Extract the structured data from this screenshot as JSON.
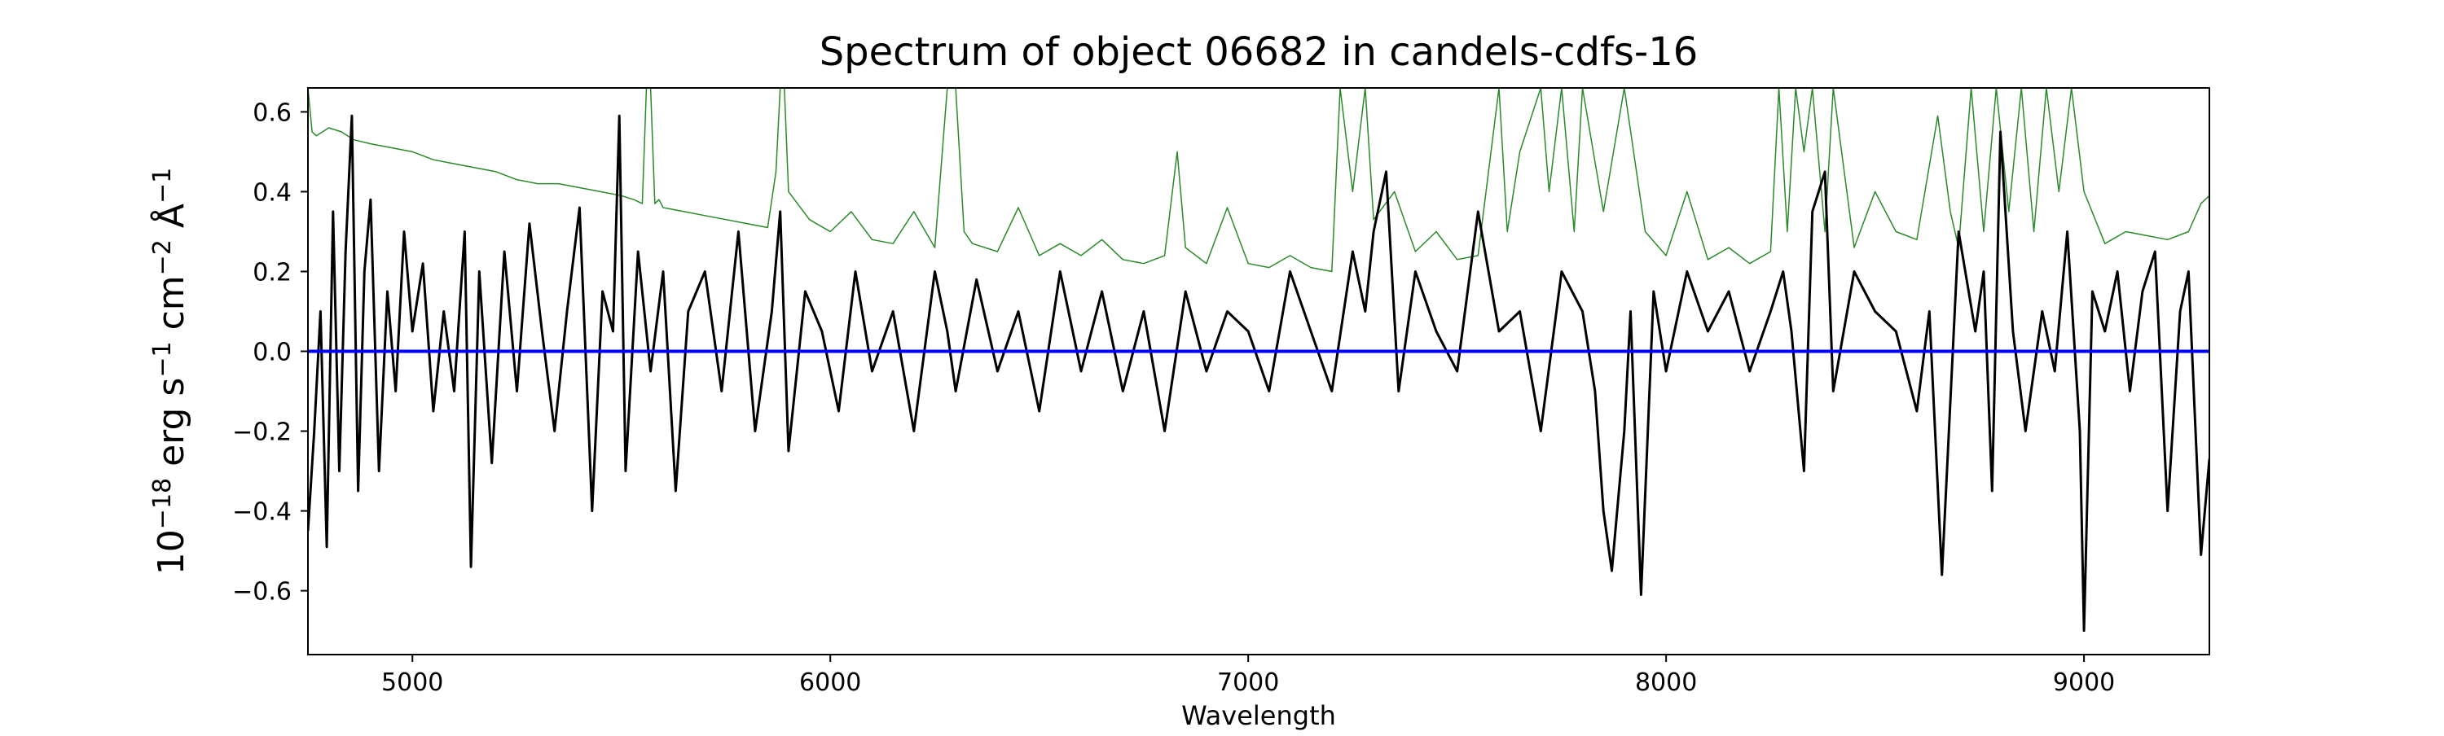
{
  "chart_data": {
    "type": "line",
    "title": "Spectrum of object 06682 in candels-cdfs-16",
    "xlabel": "Wavelength",
    "ylabel": {
      "prefix": "10",
      "prefix_exp": "−18",
      "unit_a": " erg s",
      "unit_a_exp": "−1",
      "unit_b": " cm",
      "unit_b_exp": "−2",
      "unit_c": " Å",
      "unit_c_exp": "−1"
    },
    "xlim": [
      4750,
      9300
    ],
    "ylim": [
      -0.76,
      0.66
    ],
    "xticks": [
      5000,
      6000,
      7000,
      8000,
      9000
    ],
    "xtick_labels": [
      "5000",
      "6000",
      "7000",
      "8000",
      "9000"
    ],
    "yticks": [
      -0.6,
      -0.4,
      -0.2,
      0.0,
      0.2,
      0.4,
      0.6
    ],
    "ytick_labels": [
      "−0.6",
      "−0.4",
      "−0.2",
      "0.0",
      "0.2",
      "0.4",
      "0.6"
    ],
    "grid": false,
    "legend": "none",
    "series": [
      {
        "role": "flux",
        "color": "#000000",
        "x": [
          4750,
          4765,
          4780,
          4795,
          4810,
          4825,
          4840,
          4855,
          4870,
          4885,
          4900,
          4920,
          4940,
          4960,
          4980,
          5000,
          5025,
          5050,
          5075,
          5100,
          5125,
          5140,
          5160,
          5190,
          5220,
          5250,
          5280,
          5310,
          5340,
          5370,
          5400,
          5430,
          5455,
          5480,
          5495,
          5510,
          5540,
          5570,
          5600,
          5630,
          5660,
          5700,
          5740,
          5780,
          5820,
          5860,
          5880,
          5900,
          5940,
          5980,
          6020,
          6060,
          6100,
          6150,
          6200,
          6250,
          6280,
          6300,
          6350,
          6400,
          6450,
          6500,
          6550,
          6600,
          6650,
          6700,
          6750,
          6800,
          6850,
          6900,
          6950,
          7000,
          7050,
          7100,
          7150,
          7200,
          7250,
          7280,
          7300,
          7330,
          7360,
          7400,
          7450,
          7500,
          7550,
          7600,
          7650,
          7700,
          7750,
          7800,
          7830,
          7850,
          7870,
          7900,
          7915,
          7940,
          7970,
          8000,
          8050,
          8100,
          8150,
          8200,
          8250,
          8280,
          8300,
          8330,
          8350,
          8380,
          8400,
          8450,
          8500,
          8550,
          8600,
          8630,
          8660,
          8700,
          8740,
          8760,
          8780,
          8800,
          8830,
          8860,
          8900,
          8930,
          8960,
          8990,
          9000,
          9020,
          9050,
          9080,
          9110,
          9140,
          9170,
          9200,
          9230,
          9250,
          9280,
          9300
        ],
        "y": [
          -0.45,
          -0.2,
          0.1,
          -0.49,
          0.35,
          -0.3,
          0.25,
          0.59,
          -0.35,
          0.2,
          0.38,
          -0.3,
          0.15,
          -0.1,
          0.3,
          0.05,
          0.22,
          -0.15,
          0.1,
          -0.1,
          0.3,
          -0.54,
          0.2,
          -0.28,
          0.25,
          -0.1,
          0.32,
          0.05,
          -0.2,
          0.1,
          0.36,
          -0.4,
          0.15,
          0.05,
          0.59,
          -0.3,
          0.25,
          -0.05,
          0.2,
          -0.35,
          0.1,
          0.2,
          -0.1,
          0.3,
          -0.2,
          0.1,
          0.35,
          -0.25,
          0.15,
          0.05,
          -0.15,
          0.2,
          -0.05,
          0.1,
          -0.2,
          0.2,
          0.05,
          -0.1,
          0.18,
          -0.05,
          0.1,
          -0.15,
          0.2,
          -0.05,
          0.15,
          -0.1,
          0.1,
          -0.2,
          0.15,
          -0.05,
          0.1,
          0.05,
          -0.1,
          0.2,
          0.05,
          -0.1,
          0.25,
          0.1,
          0.3,
          0.45,
          -0.1,
          0.2,
          0.05,
          -0.05,
          0.35,
          0.05,
          0.1,
          -0.2,
          0.2,
          0.1,
          -0.1,
          -0.4,
          -0.55,
          -0.2,
          0.1,
          -0.61,
          0.15,
          -0.05,
          0.2,
          0.05,
          0.15,
          -0.05,
          0.1,
          0.2,
          0.05,
          -0.3,
          0.35,
          0.45,
          -0.1,
          0.2,
          0.1,
          0.05,
          -0.15,
          0.1,
          -0.56,
          0.3,
          0.05,
          0.2,
          -0.35,
          0.55,
          0.05,
          -0.2,
          0.1,
          -0.05,
          0.3,
          -0.2,
          -0.7,
          0.15,
          0.05,
          0.2,
          -0.1,
          0.15,
          0.25,
          -0.4,
          0.1,
          0.2,
          -0.51,
          -0.27
        ]
      },
      {
        "role": "noise",
        "color": "#2a8a2a",
        "x": [
          4750,
          4760,
          4770,
          4800,
          4830,
          4860,
          4900,
          4950,
          5000,
          5050,
          5100,
          5150,
          5200,
          5250,
          5300,
          5350,
          5400,
          5450,
          5500,
          5530,
          5550,
          5560,
          5570,
          5580,
          5590,
          5600,
          5650,
          5700,
          5750,
          5800,
          5850,
          5870,
          5880,
          5890,
          5900,
          5950,
          6000,
          6050,
          6100,
          6150,
          6200,
          6250,
          6280,
          6300,
          6320,
          6340,
          6400,
          6450,
          6500,
          6550,
          6600,
          6650,
          6700,
          6750,
          6800,
          6830,
          6850,
          6900,
          6950,
          7000,
          7050,
          7100,
          7150,
          7200,
          7220,
          7250,
          7280,
          7300,
          7350,
          7400,
          7450,
          7500,
          7550,
          7600,
          7620,
          7650,
          7700,
          7720,
          7750,
          7780,
          7800,
          7850,
          7900,
          7950,
          8000,
          8050,
          8100,
          8150,
          8200,
          8250,
          8270,
          8290,
          8310,
          8330,
          8350,
          8380,
          8400,
          8450,
          8500,
          8550,
          8600,
          8650,
          8680,
          8700,
          8730,
          8760,
          8790,
          8820,
          8850,
          8880,
          8910,
          8940,
          8970,
          9000,
          9050,
          9100,
          9150,
          9200,
          9250,
          9280,
          9300
        ],
        "y": [
          0.66,
          0.55,
          0.54,
          0.56,
          0.55,
          0.53,
          0.52,
          0.51,
          0.5,
          0.48,
          0.47,
          0.46,
          0.45,
          0.43,
          0.42,
          0.42,
          0.41,
          0.4,
          0.39,
          0.38,
          0.37,
          0.66,
          0.66,
          0.37,
          0.38,
          0.36,
          0.35,
          0.34,
          0.33,
          0.32,
          0.31,
          0.45,
          0.66,
          0.66,
          0.4,
          0.33,
          0.3,
          0.35,
          0.28,
          0.27,
          0.35,
          0.26,
          0.66,
          0.66,
          0.3,
          0.27,
          0.25,
          0.36,
          0.24,
          0.27,
          0.24,
          0.28,
          0.23,
          0.22,
          0.24,
          0.5,
          0.26,
          0.22,
          0.36,
          0.22,
          0.21,
          0.24,
          0.21,
          0.2,
          0.66,
          0.4,
          0.66,
          0.33,
          0.4,
          0.25,
          0.3,
          0.23,
          0.24,
          0.66,
          0.3,
          0.5,
          0.66,
          0.4,
          0.66,
          0.3,
          0.66,
          0.35,
          0.66,
          0.3,
          0.24,
          0.4,
          0.23,
          0.26,
          0.22,
          0.25,
          0.66,
          0.3,
          0.66,
          0.5,
          0.66,
          0.3,
          0.66,
          0.26,
          0.4,
          0.3,
          0.28,
          0.59,
          0.35,
          0.26,
          0.66,
          0.3,
          0.66,
          0.35,
          0.66,
          0.3,
          0.66,
          0.4,
          0.66,
          0.4,
          0.27,
          0.3,
          0.29,
          0.28,
          0.3,
          0.37,
          0.39
        ]
      },
      {
        "role": "zero",
        "color": "#0000ff",
        "x": [
          4750,
          9300
        ],
        "y": [
          0,
          0
        ]
      }
    ]
  }
}
